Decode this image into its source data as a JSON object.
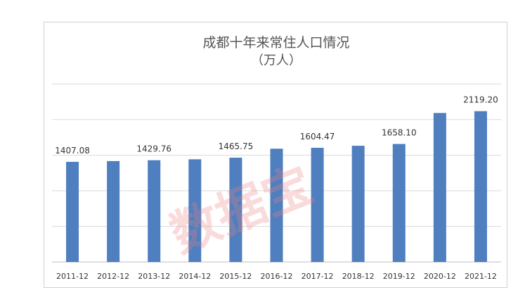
{
  "chart_data": {
    "type": "bar",
    "title": "成都十年来常住人口情况",
    "subtitle": "（万人）",
    "categories": [
      "2011-12",
      "2012-12",
      "2013-12",
      "2014-12",
      "2015-12",
      "2016-12",
      "2017-12",
      "2018-12",
      "2019-12",
      "2020-12",
      "2021-12"
    ],
    "values": [
      1407.08,
      1417.8,
      1429.76,
      1442.8,
      1465.75,
      1591.8,
      1604.47,
      1633.0,
      1658.1,
      2093.8,
      2119.2
    ],
    "data_labels": [
      "1407.08",
      "",
      "1429.76",
      "",
      "1465.75",
      "",
      "1604.47",
      "",
      "1658.10",
      "",
      "2119.20"
    ],
    "ylim": [
      0,
      2500
    ],
    "grid": true,
    "bar_color": "#4f7fbf",
    "watermark": "数据宝"
  }
}
